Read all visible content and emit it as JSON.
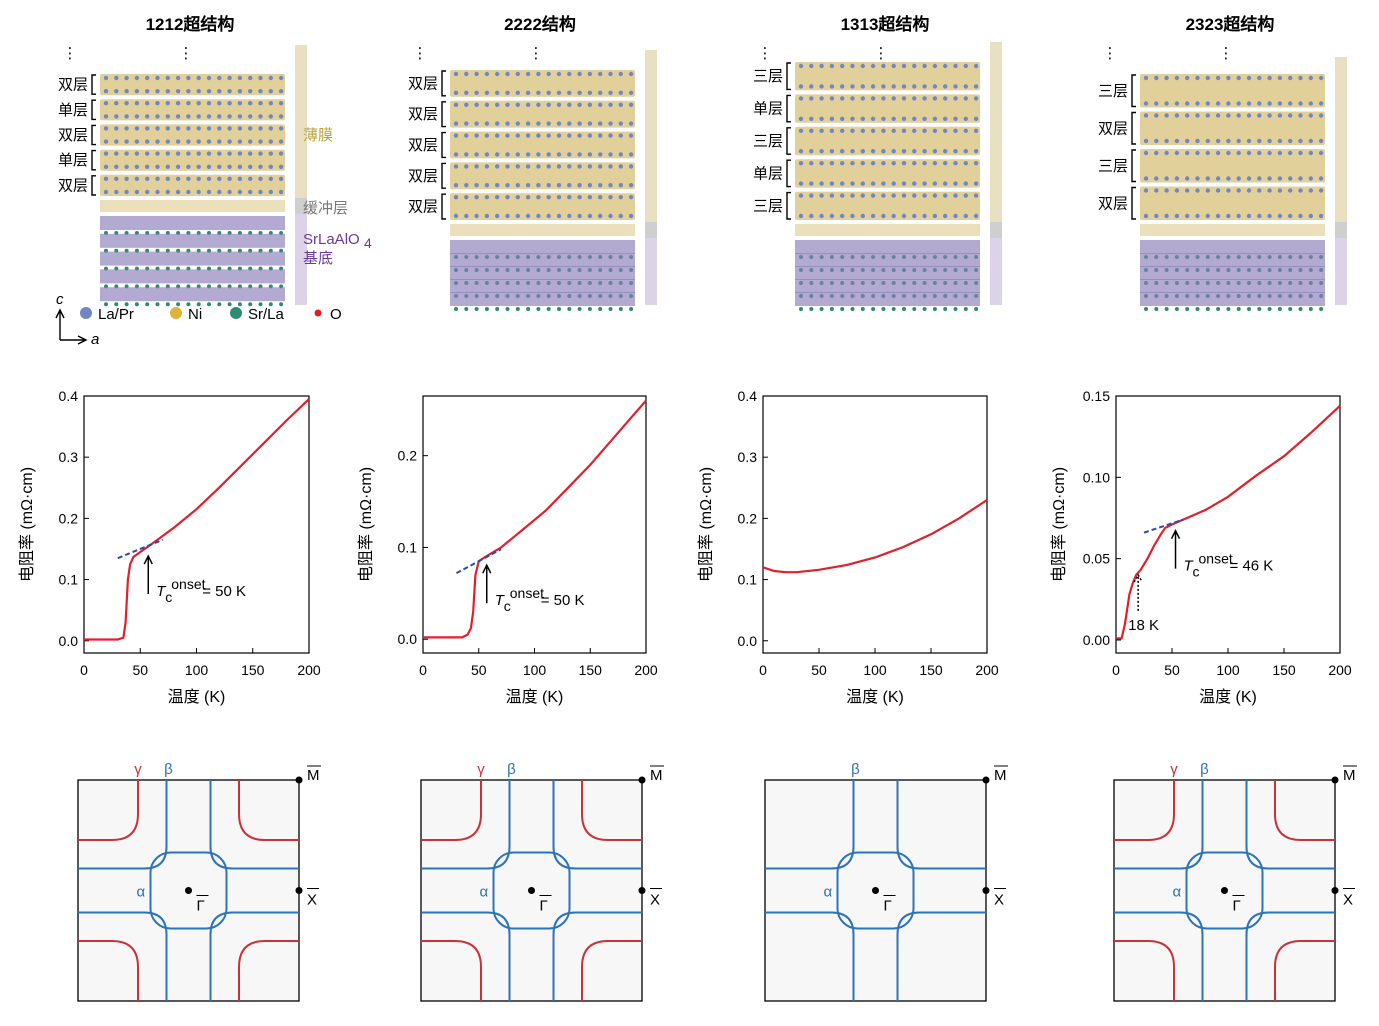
{
  "structures": [
    {
      "title": "1212超结构",
      "layers": [
        "双层",
        "单层",
        "双层",
        "单层",
        "双层"
      ]
    },
    {
      "title": "2222结构",
      "layers": [
        "双层",
        "双层",
        "双层",
        "双层",
        "双层"
      ]
    },
    {
      "title": "1313超结构",
      "layers": [
        "三层",
        "单层",
        "三层",
        "单层",
        "三层"
      ]
    },
    {
      "title": "2323超结构",
      "layers": [
        "三层",
        "双层",
        "三层",
        "双层"
      ]
    }
  ],
  "region_labels": {
    "film": "薄膜",
    "buffer": "缓冲层",
    "substrate_line1": "SrLaAlO",
    "substrate_sub": "4",
    "substrate_line2": "基底"
  },
  "atom_legend": [
    {
      "name": "La/Pr",
      "color": "#6f88c4"
    },
    {
      "name": "Ni",
      "color": "#e0b43a"
    },
    {
      "name": "Sr/La",
      "color": "#2f8a70"
    },
    {
      "name": "O",
      "color": "#e02020"
    }
  ],
  "axis_letters": {
    "c": "c",
    "a": "a"
  },
  "colors": {
    "curve": "#e0202a",
    "fit": "#2c4aa8",
    "gamma": "#c8323a",
    "beta": "#2c73b8",
    "film": "#e9e0c2",
    "buffer": "#cfcfcf",
    "substrate": "#ddd3e8",
    "bi_layer": "#d8c07a",
    "substrate_layer": "#8a7cb8"
  },
  "chart_data": [
    {
      "type": "line",
      "xlabel": "温度 (K)",
      "ylabel": "电阻率 (mΩ·cm)",
      "xlim": [
        0,
        200
      ],
      "ylim": [
        -0.02,
        0.4
      ],
      "xticks": [
        0,
        50,
        100,
        150,
        200
      ],
      "xtick_labels": [
        "0",
        "50",
        "100",
        "150",
        "200"
      ],
      "yticks": [
        0.0,
        0.1,
        0.2,
        0.3,
        0.4
      ],
      "ytick_labels": [
        "0.0",
        "0.1",
        "0.2",
        "0.3",
        "0.4"
      ],
      "series": [
        {
          "x": [
            0,
            30,
            35,
            37,
            39,
            41,
            44,
            50,
            60,
            80,
            100,
            120,
            150,
            180,
            200
          ],
          "y": [
            0.002,
            0.002,
            0.005,
            0.03,
            0.1,
            0.125,
            0.137,
            0.145,
            0.158,
            0.185,
            0.215,
            0.25,
            0.305,
            0.36,
            0.395
          ]
        }
      ],
      "fit": {
        "x": [
          30,
          70
        ],
        "y": [
          0.135,
          0.165
        ]
      },
      "annotation": {
        "prefix": "T",
        "sub": "c",
        "sup": "onset",
        "suffix": " = 50 K",
        "arrow_x": 50
      }
    },
    {
      "type": "line",
      "xlabel": "温度 (K)",
      "ylabel": "电阻率 (mΩ·cm)",
      "xlim": [
        0,
        200
      ],
      "ylim": [
        -0.015,
        0.265
      ],
      "xticks": [
        0,
        50,
        100,
        150,
        200
      ],
      "xtick_labels": [
        "0",
        "50",
        "100",
        "150",
        "200"
      ],
      "yticks": [
        0.0,
        0.1,
        0.2
      ],
      "ytick_labels": [
        "0.0",
        "0.1",
        "0.2"
      ],
      "series": [
        {
          "x": [
            0,
            35,
            40,
            43,
            45,
            47,
            50,
            55,
            70,
            90,
            110,
            130,
            150,
            175,
            200
          ],
          "y": [
            0.002,
            0.002,
            0.005,
            0.012,
            0.03,
            0.07,
            0.085,
            0.089,
            0.1,
            0.12,
            0.14,
            0.165,
            0.19,
            0.225,
            0.26
          ]
        }
      ],
      "fit": {
        "x": [
          30,
          70
        ],
        "y": [
          0.072,
          0.098
        ]
      },
      "annotation": {
        "prefix": "T",
        "sub": "c",
        "sup": "onset",
        "suffix": " = 50 K",
        "arrow_x": 50
      }
    },
    {
      "type": "line",
      "xlabel": "温度 (K)",
      "ylabel": "电阻率 (mΩ·cm)",
      "xlim": [
        0,
        200
      ],
      "ylim": [
        -0.02,
        0.4
      ],
      "xticks": [
        0,
        50,
        100,
        150,
        200
      ],
      "xtick_labels": [
        "0",
        "50",
        "100",
        "150",
        "200"
      ],
      "yticks": [
        0.0,
        0.1,
        0.2,
        0.3,
        0.4
      ],
      "ytick_labels": [
        "0.0",
        "0.1",
        "0.2",
        "0.3",
        "0.4"
      ],
      "series": [
        {
          "x": [
            0,
            10,
            20,
            30,
            50,
            75,
            100,
            125,
            150,
            175,
            200
          ],
          "y": [
            0.12,
            0.114,
            0.112,
            0.112,
            0.116,
            0.124,
            0.136,
            0.153,
            0.174,
            0.2,
            0.23
          ]
        }
      ]
    },
    {
      "type": "line",
      "xlabel": "温度 (K)",
      "ylabel": "电阻率 (mΩ·cm)",
      "xlim": [
        0,
        200
      ],
      "ylim": [
        -0.008,
        0.15
      ],
      "xticks": [
        0,
        50,
        100,
        150,
        200
      ],
      "xtick_labels": [
        "0",
        "50",
        "100",
        "150",
        "200"
      ],
      "yticks": [
        0.0,
        0.05,
        0.1,
        0.15
      ],
      "ytick_labels": [
        "0.00",
        "0.05",
        "0.10",
        "0.15"
      ],
      "series": [
        {
          "x": [
            0,
            5,
            8,
            12,
            15,
            18,
            22,
            28,
            34,
            40,
            44,
            50,
            60,
            80,
            100,
            125,
            150,
            175,
            200
          ],
          "y": [
            0.001,
            0.001,
            0.01,
            0.028,
            0.035,
            0.04,
            0.043,
            0.05,
            0.058,
            0.065,
            0.069,
            0.071,
            0.074,
            0.08,
            0.088,
            0.101,
            0.113,
            0.128,
            0.144
          ]
        }
      ],
      "fit": {
        "x": [
          25,
          60
        ],
        "y": [
          0.066,
          0.074
        ]
      },
      "annotation": {
        "prefix": "T",
        "sub": "c",
        "sup": "onset",
        "suffix": " = 46 K",
        "arrow_x": 46
      },
      "annotation2": {
        "text": "18 K",
        "arrow_x": 18
      }
    }
  ],
  "fermi": {
    "labels": {
      "gamma": "γ",
      "beta": "β",
      "alpha": "α",
      "M": "M",
      "X": "X",
      "Gamma": "Γ"
    },
    "panels": [
      {
        "gamma": true,
        "beta": true
      },
      {
        "gamma": true,
        "beta": true
      },
      {
        "gamma": false,
        "beta": true
      },
      {
        "gamma": true,
        "beta": true
      }
    ]
  }
}
